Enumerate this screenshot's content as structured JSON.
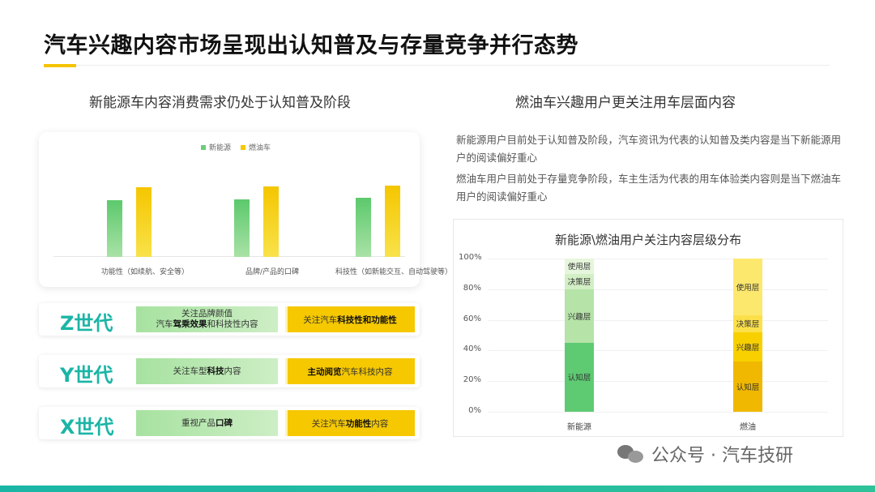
{
  "page": {
    "title": "汽车兴趣内容市场呈现出认知普及与存量竞争并行态势"
  },
  "left": {
    "subtitle": "新能源车内容消费需求仍处于认知普及阶段",
    "legend": [
      "新能源",
      "燃油车"
    ],
    "colors": {
      "green": "#6dcc7a",
      "yellow": "#f6c800"
    }
  },
  "chart_data": [
    {
      "type": "bar",
      "categories": [
        "功能性（如续航、安全等）",
        "品牌/产品的口碑",
        "科技性（如新能交互、自动驾驶等）"
      ],
      "series": [
        {
          "name": "新能源",
          "values": [
            70,
            71,
            73
          ]
        },
        {
          "name": "燃油车",
          "values": [
            86,
            87,
            88
          ]
        }
      ],
      "ylim": [
        0,
        100
      ],
      "grid": false,
      "legend": "top-center"
    },
    {
      "type": "bar",
      "title": "新能源\\燃油用户关注内容层级分布",
      "categories": [
        "新能源",
        "燃油"
      ],
      "stacked": true,
      "ylim": [
        0,
        100
      ],
      "yticks": [
        "0%",
        "20%",
        "40%",
        "60%",
        "80%",
        "100%"
      ],
      "series": [
        {
          "name": "认知层",
          "values": [
            45,
            33
          ]
        },
        {
          "name": "兴趣层",
          "values": [
            35,
            19
          ]
        },
        {
          "name": "决策层",
          "values": [
            10,
            11
          ]
        },
        {
          "name": "使用层",
          "values": [
            10,
            37
          ]
        }
      ]
    }
  ],
  "generations": [
    {
      "name": "Z世代",
      "green_line1": "关注品牌颜值",
      "green_line2_pre": "汽车",
      "green_line2_bold": "驾乘效果",
      "green_line2_post": "和科技性内容",
      "yellow_pre": "关注汽车",
      "yellow_bold": "科技性和功能性",
      "yellow_post": ""
    },
    {
      "name": "Y世代",
      "green_pre": "关注车型",
      "green_bold": "科技",
      "green_post": "内容",
      "yellow_pre": "",
      "yellow_bold": "主动阅览",
      "yellow_post": "汽车科技内容"
    },
    {
      "name": "X世代",
      "green_pre": "重视产品",
      "green_bold": "口碑",
      "green_post": "",
      "yellow_pre": "关注汽车",
      "yellow_bold": "功能性",
      "yellow_post": "内容"
    }
  ],
  "right": {
    "subtitle": "燃油车兴趣用户更关注用车层面内容",
    "desc1": "新能源用户目前处于认知普及阶段，汽车资讯为代表的认知普及类内容是当下新能源用户的阅读偏好重心",
    "desc2": "燃油车用户目前处于存量竞争阶段，车主生活为代表的用车体验类内容则是当下燃油车用户的阅读偏好重心"
  },
  "watermark": {
    "text": "公众号 · 汽车技研",
    "icon": "wechat-icon"
  }
}
